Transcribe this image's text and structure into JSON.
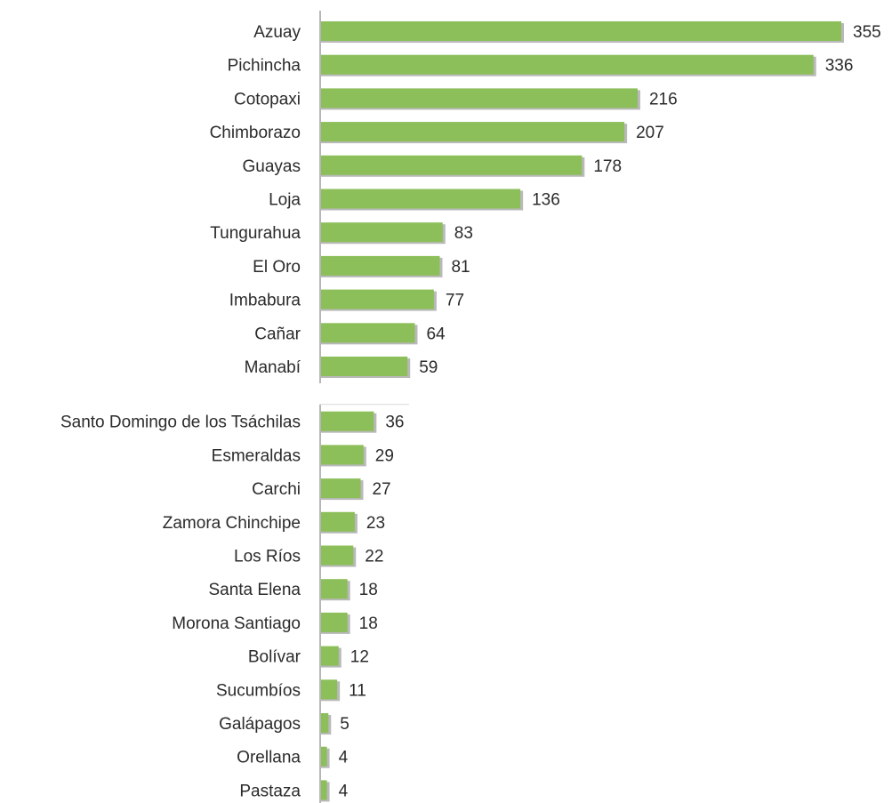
{
  "chart_data": {
    "type": "bar",
    "orientation": "horizontal",
    "title": "",
    "xlabel": "",
    "ylabel": "",
    "categories": [
      "Azuay",
      "Pichincha",
      "Cotopaxi",
      "Chimborazo",
      "Guayas",
      "Loja",
      "Tungurahua",
      "El Oro",
      "Imbabura",
      "Cañar",
      "Manabí",
      "Santo Domingo de los Tsáchilas",
      "Esmeraldas",
      "Carchi",
      "Zamora Chinchipe",
      "Los Ríos",
      "Santa Elena",
      "Morona Santiago",
      "Bolívar",
      "Sucumbíos",
      "Galápagos",
      "Orellana",
      "Pastaza"
    ],
    "values": [
      355,
      336,
      216,
      207,
      178,
      136,
      83,
      81,
      77,
      64,
      59,
      36,
      29,
      27,
      23,
      22,
      18,
      18,
      12,
      11,
      5,
      4,
      4
    ],
    "value_labels": [
      "355",
      "336",
      "216",
      "207",
      "178",
      "136",
      "83",
      "81",
      "77",
      "64",
      "59",
      "36",
      "29",
      "27",
      "23",
      "22",
      "18",
      "18",
      "12",
      "11",
      "5",
      "4",
      "4"
    ],
    "xlim": [
      0,
      355
    ],
    "grid": false,
    "legend": "none",
    "colors": {
      "bar": "#8cbf5a",
      "bar_shadow": "#b9b9b9",
      "axis": "#9e9e9e",
      "text": "#2b2b2b"
    }
  }
}
